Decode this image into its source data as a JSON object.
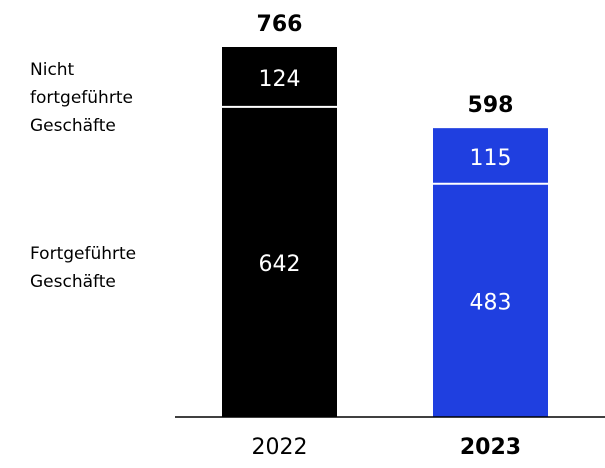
{
  "chart_data": {
    "type": "stacked_bar",
    "categories": [
      "2022",
      "2023"
    ],
    "colors": [
      "#000000",
      "#1f3fe0"
    ],
    "series": [
      {
        "name": "Fortgeführte Geschäfte",
        "values": [
          642,
          483
        ]
      },
      {
        "name": "Nicht fortgeführte Geschäfte",
        "values": [
          124,
          115
        ]
      }
    ],
    "totals": [
      766,
      598
    ]
  }
}
